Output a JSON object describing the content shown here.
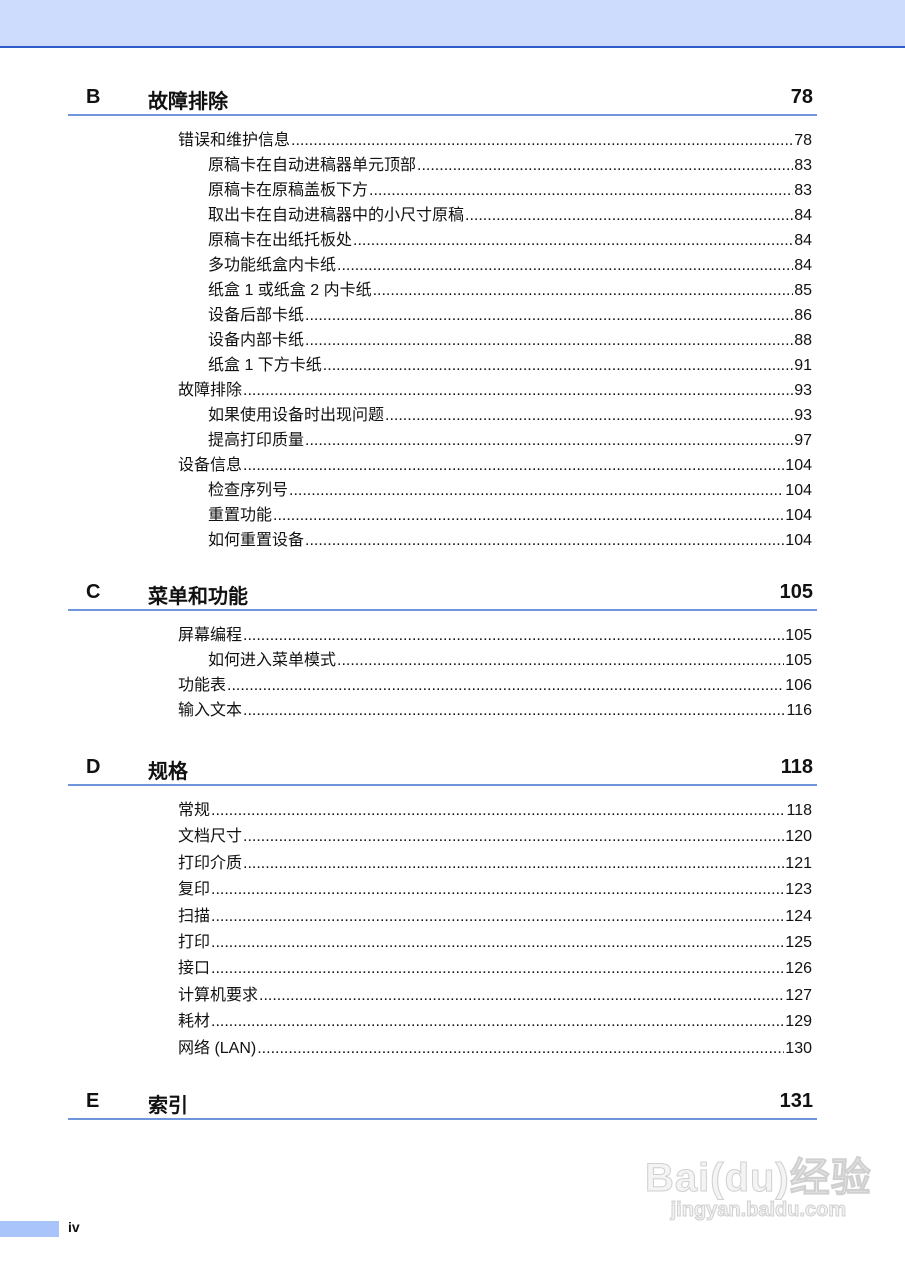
{
  "sections": [
    {
      "letter": "B",
      "title": "故障排除",
      "page": "78",
      "entries": [
        {
          "level": 1,
          "label": "错误和维护信息",
          "page": "78"
        },
        {
          "level": 2,
          "label": "原稿卡在自动进稿器单元顶部",
          "page": "83"
        },
        {
          "level": 2,
          "label": "原稿卡在原稿盖板下方",
          "page": "83"
        },
        {
          "level": 2,
          "label": "取出卡在自动进稿器中的小尺寸原稿",
          "page": "84"
        },
        {
          "level": 2,
          "label": "原稿卡在出纸托板处",
          "page": "84"
        },
        {
          "level": 2,
          "label": "多功能纸盒内卡纸",
          "page": "84"
        },
        {
          "level": 2,
          "label": "纸盒 1 或纸盒 2 内卡纸",
          "page": "85"
        },
        {
          "level": 2,
          "label": "设备后部卡纸",
          "page": "86"
        },
        {
          "level": 2,
          "label": "设备内部卡纸",
          "page": "88"
        },
        {
          "level": 2,
          "label": "纸盒 1 下方卡纸",
          "page": "91"
        },
        {
          "level": 1,
          "label": "故障排除",
          "page": "93"
        },
        {
          "level": 2,
          "label": "如果使用设备时出现问题",
          "page": "93"
        },
        {
          "level": 2,
          "label": "提高打印质量",
          "page": "97"
        },
        {
          "level": 1,
          "label": "设备信息",
          "page": "104"
        },
        {
          "level": 2,
          "label": "检查序列号",
          "page": "104"
        },
        {
          "level": 2,
          "label": "重置功能",
          "page": "104"
        },
        {
          "level": 2,
          "label": "如何重置设备",
          "page": "104"
        }
      ]
    },
    {
      "letter": "C",
      "title": "菜单和功能",
      "page": "105",
      "entries": [
        {
          "level": 1,
          "label": "屏幕编程",
          "page": "105"
        },
        {
          "level": 2,
          "label": "如何进入菜单模式",
          "page": "105"
        },
        {
          "level": 1,
          "label": "功能表",
          "page": "106"
        },
        {
          "level": 1,
          "label": "输入文本",
          "page": "116"
        }
      ]
    },
    {
      "letter": "D",
      "title": "规格",
      "page": "118",
      "entries": [
        {
          "level": 1,
          "label": "常规",
          "page": "118"
        },
        {
          "level": 1,
          "label": "文档尺寸",
          "page": "120"
        },
        {
          "level": 1,
          "label": "打印介质",
          "page": "121"
        },
        {
          "level": 1,
          "label": "复印",
          "page": "123"
        },
        {
          "level": 1,
          "label": "扫描",
          "page": "124"
        },
        {
          "level": 1,
          "label": "打印",
          "page": "125"
        },
        {
          "level": 1,
          "label": "接口",
          "page": "126"
        },
        {
          "level": 1,
          "label": "计算机要求",
          "page": "127"
        },
        {
          "level": 1,
          "label": "耗材",
          "page": "129"
        },
        {
          "level": 1,
          "label": "网络 (LAN)",
          "page": "130"
        }
      ]
    },
    {
      "letter": "E",
      "title": "索引",
      "page": "131",
      "entries": []
    }
  ],
  "footer": {
    "page_number": "iv"
  },
  "watermark": {
    "logo": "Baidu经验",
    "url": "jingyan.baidu.com"
  },
  "colors": {
    "header_band": "#cddcfc",
    "rule": "#6f95dc",
    "top_line": "#2f5cc9"
  }
}
